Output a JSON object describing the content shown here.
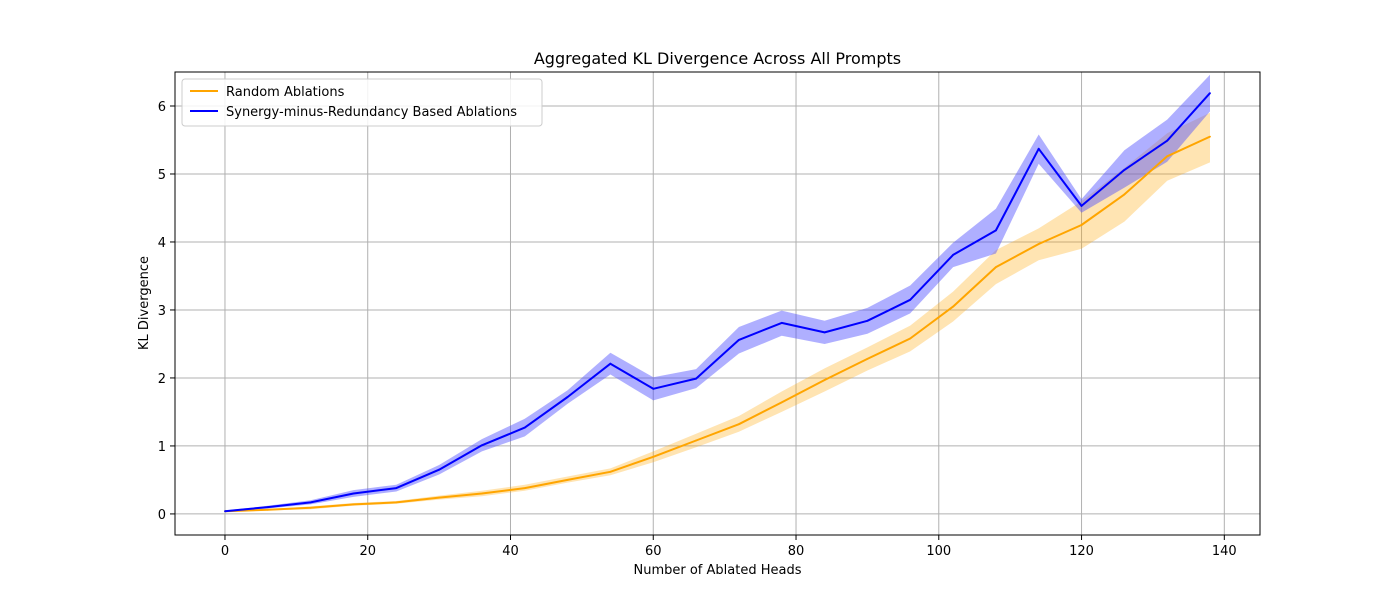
{
  "chart_data": {
    "type": "line",
    "title": "Aggregated KL Divergence Across All Prompts",
    "xlabel": "Number of Ablated Heads",
    "ylabel": "KL Divergence",
    "xlim": [
      -7,
      145
    ],
    "ylim": [
      -0.31,
      6.5
    ],
    "xticks": [
      0,
      20,
      40,
      60,
      80,
      100,
      120,
      140
    ],
    "yticks": [
      0,
      1,
      2,
      3,
      4,
      5,
      6
    ],
    "grid": true,
    "legend_position": "upper-left",
    "x": [
      0,
      6,
      12,
      18,
      24,
      30,
      36,
      42,
      48,
      54,
      60,
      66,
      72,
      78,
      84,
      90,
      96,
      102,
      108,
      114,
      120,
      126,
      132,
      138
    ],
    "series": [
      {
        "name": "Random Ablations",
        "color": "#ffa500",
        "band_color": "#ffa500",
        "values": [
          0.04,
          0.06,
          0.09,
          0.14,
          0.17,
          0.24,
          0.3,
          0.38,
          0.5,
          0.62,
          0.84,
          1.08,
          1.32,
          1.64,
          1.97,
          2.28,
          2.58,
          3.05,
          3.63,
          3.97,
          4.25,
          4.7,
          5.26,
          5.55
        ],
        "lower": [
          0.03,
          0.05,
          0.07,
          0.12,
          0.15,
          0.21,
          0.26,
          0.34,
          0.46,
          0.57,
          0.76,
          0.98,
          1.21,
          1.5,
          1.8,
          2.11,
          2.39,
          2.83,
          3.38,
          3.73,
          3.9,
          4.3,
          4.9,
          5.17
        ],
        "upper": [
          0.05,
          0.07,
          0.11,
          0.16,
          0.19,
          0.27,
          0.34,
          0.43,
          0.55,
          0.67,
          0.92,
          1.18,
          1.44,
          1.8,
          2.14,
          2.45,
          2.77,
          3.27,
          3.88,
          4.2,
          4.6,
          5.09,
          5.6,
          5.9
        ]
      },
      {
        "name": "Synergy-minus-Redundancy Based Ablations",
        "color": "#0000ff",
        "band_color": "#4d4dff",
        "values": [
          0.04,
          0.1,
          0.17,
          0.3,
          0.38,
          0.65,
          1.01,
          1.27,
          1.72,
          2.21,
          1.84,
          1.99,
          2.56,
          2.81,
          2.67,
          2.84,
          3.15,
          3.81,
          4.17,
          5.37,
          4.53,
          5.06,
          5.49,
          6.19
        ],
        "lower": [
          0.03,
          0.08,
          0.14,
          0.25,
          0.33,
          0.58,
          0.92,
          1.14,
          1.62,
          2.05,
          1.67,
          1.85,
          2.36,
          2.62,
          2.5,
          2.65,
          2.95,
          3.63,
          3.83,
          5.15,
          4.43,
          4.8,
          5.18,
          5.92
        ],
        "upper": [
          0.05,
          0.12,
          0.2,
          0.35,
          0.43,
          0.72,
          1.1,
          1.4,
          1.82,
          2.37,
          2.01,
          2.13,
          2.75,
          2.99,
          2.84,
          3.03,
          3.36,
          3.99,
          4.49,
          5.58,
          4.63,
          5.35,
          5.8,
          6.46
        ]
      }
    ]
  }
}
